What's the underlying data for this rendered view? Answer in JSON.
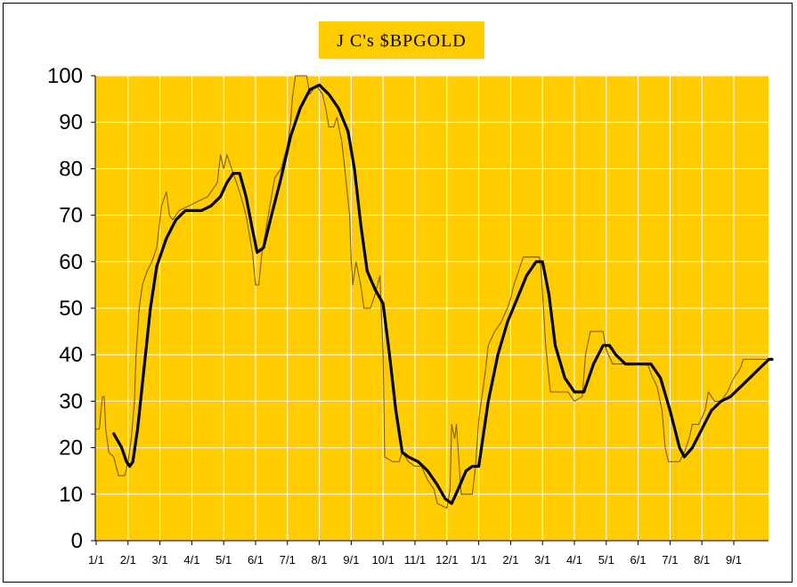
{
  "chart_data": {
    "type": "line",
    "title": "J C's $BPGOLD",
    "xlabel": "",
    "ylabel": "",
    "ylim": [
      0,
      100
    ],
    "yticks": [
      "0",
      "10",
      "20",
      "30",
      "40",
      "50",
      "60",
      "70",
      "80",
      "90",
      "100"
    ],
    "x_tick_labels": [
      "1/1",
      "2/1",
      "3/1",
      "4/1",
      "5/1",
      "6/1",
      "7/1",
      "8/1",
      "9/1",
      "10/1",
      "11/1",
      "12/1",
      "1/1",
      "2/1",
      "3/1",
      "4/1",
      "5/1",
      "6/1",
      "7/1",
      "8/1",
      "9/1"
    ],
    "x_unit": "month index from first 1/1 tick",
    "xlim": [
      0,
      21.6
    ],
    "grid": true,
    "colors": {
      "plot_bg": "#ffcc00",
      "title_bg": "#ffcc00",
      "grid": "#ffffff",
      "thin_line": "#806000",
      "smooth_line": "#000000"
    },
    "series": [
      {
        "style": "thin",
        "points": [
          [
            0.0,
            24
          ],
          [
            0.1,
            24
          ],
          [
            0.15,
            28
          ],
          [
            0.2,
            31
          ],
          [
            0.25,
            31
          ],
          [
            0.3,
            24
          ],
          [
            0.4,
            19
          ],
          [
            0.55,
            18
          ],
          [
            0.7,
            14
          ],
          [
            0.9,
            14
          ],
          [
            1.0,
            17
          ],
          [
            1.1,
            22
          ],
          [
            1.2,
            30
          ],
          [
            1.25,
            40
          ],
          [
            1.35,
            50
          ],
          [
            1.45,
            55
          ],
          [
            1.6,
            58
          ],
          [
            1.75,
            60
          ],
          [
            1.9,
            63
          ],
          [
            2.05,
            72
          ],
          [
            2.2,
            75
          ],
          [
            2.3,
            70
          ],
          [
            2.4,
            69
          ],
          [
            2.6,
            71
          ],
          [
            2.9,
            72
          ],
          [
            3.2,
            73
          ],
          [
            3.5,
            74
          ],
          [
            3.8,
            77
          ],
          [
            3.9,
            83
          ],
          [
            4.0,
            80
          ],
          [
            4.1,
            83
          ],
          [
            4.2,
            81
          ],
          [
            4.35,
            78
          ],
          [
            4.5,
            75
          ],
          [
            4.7,
            70
          ],
          [
            4.9,
            62
          ],
          [
            5.0,
            55
          ],
          [
            5.1,
            55
          ],
          [
            5.2,
            62
          ],
          [
            5.4,
            70
          ],
          [
            5.6,
            78
          ],
          [
            5.8,
            80
          ],
          [
            6.0,
            85
          ],
          [
            6.1,
            90
          ],
          [
            6.15,
            95
          ],
          [
            6.25,
            100
          ],
          [
            6.6,
            100
          ],
          [
            6.7,
            96
          ],
          [
            6.9,
            98
          ],
          [
            7.1,
            96
          ],
          [
            7.2,
            93
          ],
          [
            7.3,
            89
          ],
          [
            7.45,
            89
          ],
          [
            7.55,
            91
          ],
          [
            7.7,
            86
          ],
          [
            7.8,
            80
          ],
          [
            7.95,
            70
          ],
          [
            8.0,
            60
          ],
          [
            8.05,
            55
          ],
          [
            8.15,
            60
          ],
          [
            8.3,
            55
          ],
          [
            8.4,
            50
          ],
          [
            8.6,
            50
          ],
          [
            8.75,
            53
          ],
          [
            8.9,
            57
          ],
          [
            9.0,
            40
          ],
          [
            9.05,
            18
          ],
          [
            9.3,
            17
          ],
          [
            9.5,
            17
          ],
          [
            9.6,
            19
          ],
          [
            9.8,
            17
          ],
          [
            10.0,
            16
          ],
          [
            10.2,
            16
          ],
          [
            10.4,
            13
          ],
          [
            10.6,
            11
          ],
          [
            10.7,
            8
          ],
          [
            11.0,
            7
          ],
          [
            11.1,
            11
          ],
          [
            11.15,
            25
          ],
          [
            11.25,
            22
          ],
          [
            11.3,
            25
          ],
          [
            11.45,
            10
          ],
          [
            11.8,
            10
          ],
          [
            11.9,
            16
          ],
          [
            12.0,
            26
          ],
          [
            12.2,
            36
          ],
          [
            12.3,
            42
          ],
          [
            12.5,
            45
          ],
          [
            12.7,
            47
          ],
          [
            12.9,
            50
          ],
          [
            13.0,
            52
          ],
          [
            13.1,
            55
          ],
          [
            13.4,
            61
          ],
          [
            13.9,
            61
          ],
          [
            13.95,
            59
          ],
          [
            14.1,
            42
          ],
          [
            14.2,
            35
          ],
          [
            14.25,
            32
          ],
          [
            14.5,
            32
          ],
          [
            14.8,
            32
          ],
          [
            15.0,
            30
          ],
          [
            15.25,
            31
          ],
          [
            15.35,
            40
          ],
          [
            15.5,
            45
          ],
          [
            15.9,
            45
          ],
          [
            16.0,
            41
          ],
          [
            16.2,
            38
          ],
          [
            16.6,
            38
          ],
          [
            17.0,
            38
          ],
          [
            17.3,
            38
          ],
          [
            17.4,
            36
          ],
          [
            17.6,
            33
          ],
          [
            17.75,
            28
          ],
          [
            17.85,
            20
          ],
          [
            17.95,
            17
          ],
          [
            18.3,
            17
          ],
          [
            18.45,
            19
          ],
          [
            18.6,
            22
          ],
          [
            18.7,
            25
          ],
          [
            18.9,
            25
          ],
          [
            19.1,
            28
          ],
          [
            19.2,
            32
          ],
          [
            19.4,
            30
          ],
          [
            19.6,
            30
          ],
          [
            19.8,
            32
          ],
          [
            20.0,
            35
          ],
          [
            20.2,
            37
          ],
          [
            20.3,
            39
          ],
          [
            20.6,
            39
          ],
          [
            21.0,
            39
          ],
          [
            21.2,
            39
          ]
        ]
      },
      {
        "style": "smooth",
        "points": [
          [
            0.55,
            23
          ],
          [
            0.8,
            20
          ],
          [
            0.95,
            17
          ],
          [
            1.05,
            16
          ],
          [
            1.15,
            17
          ],
          [
            1.3,
            24
          ],
          [
            1.5,
            37
          ],
          [
            1.7,
            50
          ],
          [
            1.9,
            59
          ],
          [
            2.2,
            65
          ],
          [
            2.5,
            69
          ],
          [
            2.8,
            71
          ],
          [
            3.0,
            71
          ],
          [
            3.3,
            71
          ],
          [
            3.6,
            72
          ],
          [
            3.9,
            74
          ],
          [
            4.1,
            77
          ],
          [
            4.3,
            79
          ],
          [
            4.5,
            79
          ],
          [
            4.7,
            74
          ],
          [
            4.9,
            67
          ],
          [
            5.05,
            62
          ],
          [
            5.25,
            63
          ],
          [
            5.5,
            70
          ],
          [
            5.8,
            78
          ],
          [
            6.1,
            87
          ],
          [
            6.4,
            93
          ],
          [
            6.7,
            97
          ],
          [
            7.0,
            98
          ],
          [
            7.3,
            96
          ],
          [
            7.6,
            93
          ],
          [
            7.9,
            88
          ],
          [
            8.1,
            80
          ],
          [
            8.3,
            68
          ],
          [
            8.5,
            58
          ],
          [
            8.75,
            54
          ],
          [
            9.0,
            51
          ],
          [
            9.2,
            40
          ],
          [
            9.4,
            28
          ],
          [
            9.6,
            19
          ],
          [
            9.8,
            18
          ],
          [
            10.1,
            17
          ],
          [
            10.4,
            15
          ],
          [
            10.7,
            12
          ],
          [
            10.95,
            9
          ],
          [
            11.15,
            8
          ],
          [
            11.35,
            11
          ],
          [
            11.6,
            15
          ],
          [
            11.8,
            16
          ],
          [
            12.0,
            16
          ],
          [
            12.3,
            30
          ],
          [
            12.6,
            40
          ],
          [
            12.9,
            47
          ],
          [
            13.2,
            52
          ],
          [
            13.5,
            57
          ],
          [
            13.8,
            60
          ],
          [
            14.0,
            60
          ],
          [
            14.2,
            53
          ],
          [
            14.4,
            42
          ],
          [
            14.7,
            35
          ],
          [
            15.0,
            32
          ],
          [
            15.3,
            32
          ],
          [
            15.6,
            38
          ],
          [
            15.9,
            42
          ],
          [
            16.1,
            42
          ],
          [
            16.3,
            40
          ],
          [
            16.6,
            38
          ],
          [
            17.0,
            38
          ],
          [
            17.4,
            38
          ],
          [
            17.7,
            35
          ],
          [
            18.0,
            28
          ],
          [
            18.3,
            20
          ],
          [
            18.45,
            18
          ],
          [
            18.7,
            20
          ],
          [
            19.0,
            24
          ],
          [
            19.3,
            28
          ],
          [
            19.6,
            30
          ],
          [
            19.9,
            31
          ],
          [
            20.2,
            33
          ],
          [
            20.5,
            35
          ],
          [
            20.8,
            37
          ],
          [
            21.1,
            39
          ],
          [
            21.2,
            39
          ]
        ]
      }
    ]
  }
}
